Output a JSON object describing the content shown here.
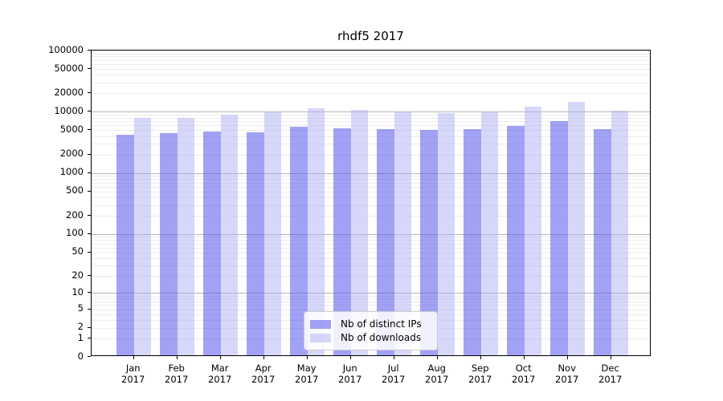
{
  "title": "rhdf5 2017",
  "chart_data": {
    "type": "bar",
    "title": "rhdf5 2017",
    "year": "2017",
    "categories": [
      "Jan",
      "Feb",
      "Mar",
      "Apr",
      "May",
      "Jun",
      "Jul",
      "Aug",
      "Sep",
      "Oct",
      "Nov",
      "Dec"
    ],
    "series": [
      {
        "name": "Nb of distinct IPs",
        "color": "rgba(85,85,235,0.55)",
        "hex": "#a9a9f1",
        "values": [
          3940,
          4200,
          4550,
          4350,
          5450,
          5000,
          4850,
          4700,
          4950,
          5600,
          6700,
          4950
        ]
      },
      {
        "name": "Nb of downloads",
        "color": "rgba(175,175,245,0.5)",
        "hex": "#d8d8f9",
        "values": [
          7420,
          7550,
          8350,
          9300,
          10700,
          10100,
          9500,
          9050,
          9300,
          11300,
          13800,
          9700
        ]
      }
    ],
    "y_ticks": [
      0,
      1,
      2,
      5,
      10,
      20,
      50,
      100,
      200,
      500,
      1000,
      2000,
      5000,
      10000,
      20000,
      50000,
      100000
    ],
    "y_scale": "log10(value+1)",
    "ylim": [
      0,
      100000
    ],
    "grid": "horizontal, minor ticks 2-9 per decade, majors at powers of 10",
    "legend_position": "lower center inside plot",
    "colors": {
      "major_grid": "#b5b5b5",
      "minor_grid": "#ececec",
      "spine": "#000000"
    }
  }
}
